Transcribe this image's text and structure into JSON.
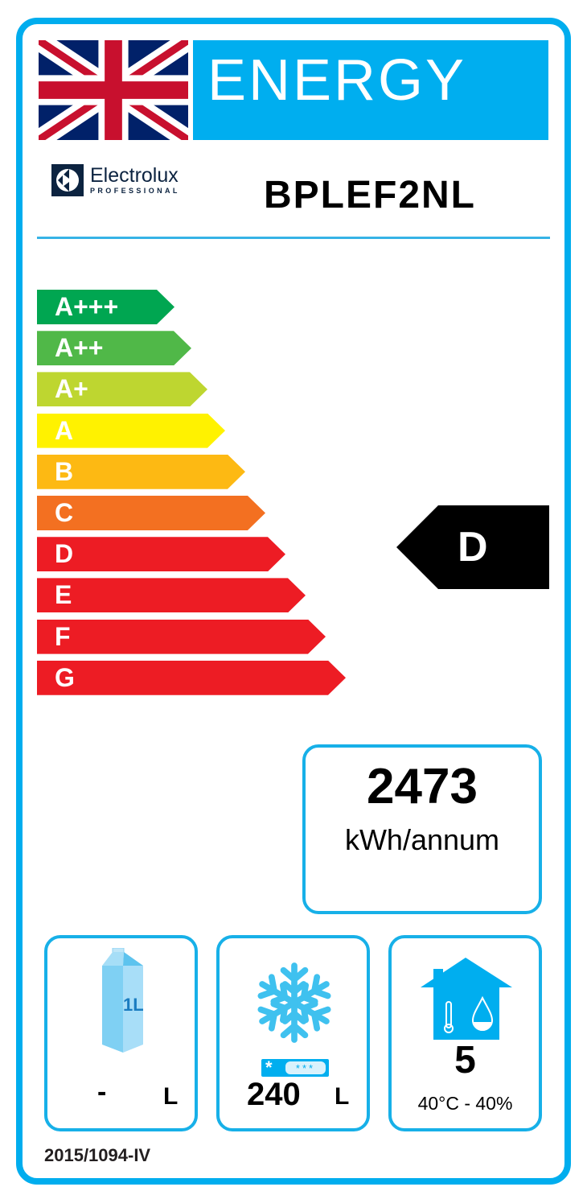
{
  "header": {
    "title": "ENERGY",
    "flag_icon": "union-jack-flag"
  },
  "brand": {
    "name": "Electrolux",
    "subline": "PROFESSIONAL"
  },
  "model": "BPLEF2NL",
  "scale": [
    {
      "label": "A+++",
      "color": "#00a651"
    },
    {
      "label": "A++",
      "color": "#50b848"
    },
    {
      "label": "A+",
      "color": "#bed630"
    },
    {
      "label": "A",
      "color": "#fff200"
    },
    {
      "label": "B",
      "color": "#fdb913"
    },
    {
      "label": "C",
      "color": "#f37021"
    },
    {
      "label": "D",
      "color": "#ed1c24"
    },
    {
      "label": "E",
      "color": "#ed1c24"
    },
    {
      "label": "F",
      "color": "#ed1c24"
    },
    {
      "label": "G",
      "color": "#ed1c24"
    }
  ],
  "rating": "D",
  "consumption": {
    "value": "2473",
    "unit": "kWh/annum"
  },
  "chilled_volume": {
    "value": "-",
    "unit": "L",
    "icon_label": "1L"
  },
  "frozen_volume": {
    "value": "240",
    "unit": "L"
  },
  "climate_class": {
    "value": "5",
    "conditions": "40°C - 40%"
  },
  "regulation": "2015/1094-IV",
  "accent_color": "#00aeef"
}
